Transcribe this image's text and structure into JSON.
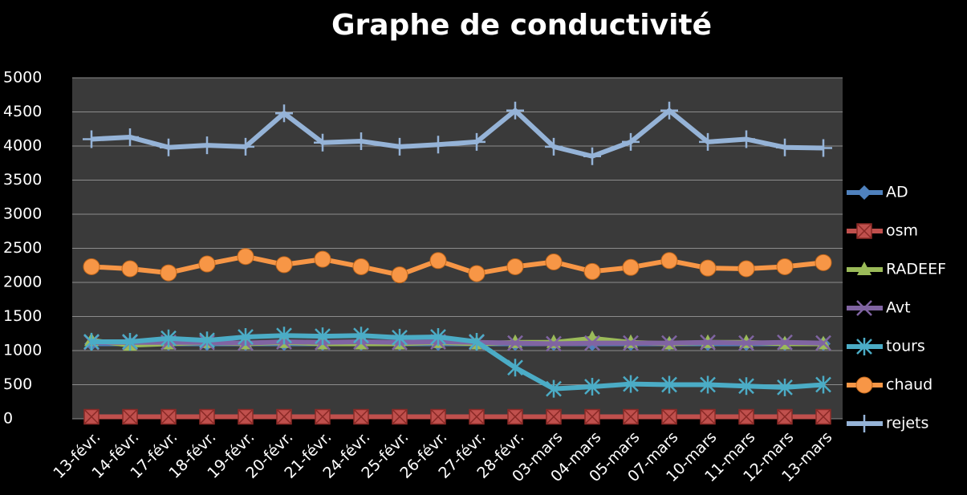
{
  "chart_data": {
    "type": "line",
    "title": "Graphe de conductivité",
    "categories": [
      "13-févr.",
      "14-févr.",
      "17-févr.",
      "18-févr.",
      "19-févr.",
      "20-févr.",
      "21-févr.",
      "24-févr.",
      "25-févr.",
      "26-févr.",
      "27-févr.",
      "28-févr.",
      "03-mars",
      "04-mars",
      "05-mars",
      "07-mars",
      "10-mars",
      "11-mars",
      "12-mars",
      "13-mars"
    ],
    "series": [
      {
        "name": "AD",
        "color": "#4f81bd",
        "marker": "diamond",
        "values": [
          1100,
          1100,
          1100,
          1100,
          1100,
          1100,
          1100,
          1100,
          1100,
          1100,
          1100,
          1100,
          1100,
          1100,
          1100,
          1100,
          1100,
          1100,
          1100,
          1100
        ]
      },
      {
        "name": "osm",
        "color": "#c0504d",
        "marker": "square",
        "values": [
          30,
          30,
          30,
          30,
          30,
          30,
          30,
          30,
          30,
          30,
          30,
          30,
          30,
          30,
          30,
          30,
          30,
          30,
          30,
          30
        ]
      },
      {
        "name": "RADEEF",
        "color": "#9bbb59",
        "marker": "triangle",
        "values": [
          1150,
          1080,
          1100,
          1120,
          1100,
          1120,
          1100,
          1100,
          1100,
          1120,
          1100,
          1120,
          1120,
          1180,
          1120,
          1100,
          1120,
          1120,
          1100,
          1100
        ]
      },
      {
        "name": "Avt",
        "color": "#8064a2",
        "marker": "x",
        "values": [
          1120,
          1120,
          1120,
          1120,
          1110,
          1130,
          1120,
          1130,
          1120,
          1130,
          1120,
          1110,
          1100,
          1110,
          1110,
          1110,
          1120,
          1110,
          1120,
          1110
        ]
      },
      {
        "name": "tours",
        "color": "#4bacc6",
        "marker": "star",
        "values": [
          1130,
          1130,
          1180,
          1150,
          1200,
          1220,
          1210,
          1220,
          1190,
          1200,
          1130,
          750,
          440,
          470,
          510,
          500,
          500,
          480,
          460,
          500
        ]
      },
      {
        "name": "chaud",
        "color": "#f79646",
        "marker": "circle",
        "values": [
          2230,
          2200,
          2140,
          2270,
          2380,
          2260,
          2340,
          2230,
          2110,
          2320,
          2130,
          2230,
          2300,
          2160,
          2220,
          2320,
          2210,
          2200,
          2230,
          2290
        ]
      },
      {
        "name": "rejets",
        "color": "#95b3d7",
        "marker": "plus",
        "values": [
          4100,
          4130,
          3980,
          4010,
          3990,
          4480,
          4050,
          4070,
          3990,
          4020,
          4060,
          4520,
          3990,
          3850,
          4060,
          4520,
          4060,
          4100,
          3980,
          3970
        ]
      }
    ],
    "ylim": [
      0,
      5000
    ],
    "yticks": [
      0,
      500,
      1000,
      1500,
      2000,
      2500,
      3000,
      3500,
      4000,
      4500,
      5000
    ],
    "grid": true,
    "legend": "right"
  }
}
